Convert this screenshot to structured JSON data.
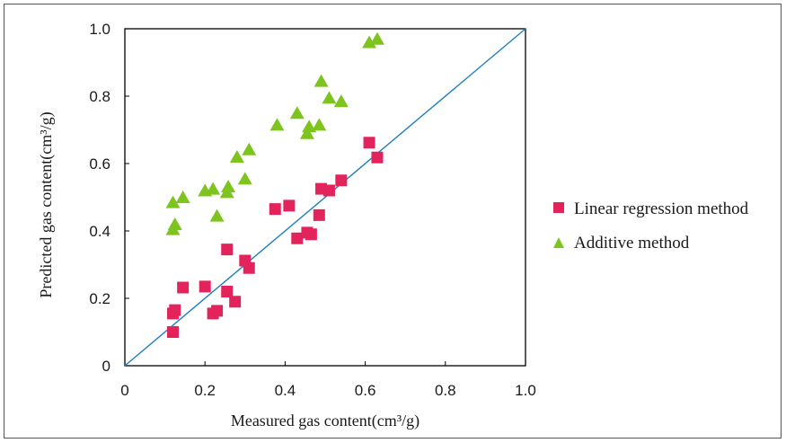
{
  "chart_data": {
    "type": "scatter",
    "xlabel": "Measured gas content(cm³/g)",
    "ylabel": "Predicted gas content(cm³/g)",
    "xlim": [
      0,
      1.0
    ],
    "ylim": [
      0,
      1.0
    ],
    "x_ticks": [
      "0",
      "0.2",
      "0.4",
      "0.6",
      "0.8",
      "1.0"
    ],
    "y_ticks": [
      "0",
      "0.2",
      "0.4",
      "0.6",
      "0.8",
      "1.0"
    ],
    "grid": false,
    "legend_position": "right",
    "reference_line": {
      "type": "y=x",
      "color": "#1f7fc0"
    },
    "series": [
      {
        "name": "Linear regression method",
        "marker": "square",
        "color": "#e3245c",
        "points": [
          [
            0.12,
            0.1
          ],
          [
            0.12,
            0.155
          ],
          [
            0.125,
            0.165
          ],
          [
            0.145,
            0.232
          ],
          [
            0.2,
            0.235
          ],
          [
            0.22,
            0.155
          ],
          [
            0.23,
            0.163
          ],
          [
            0.255,
            0.22
          ],
          [
            0.255,
            0.345
          ],
          [
            0.275,
            0.19
          ],
          [
            0.3,
            0.312
          ],
          [
            0.31,
            0.29
          ],
          [
            0.375,
            0.465
          ],
          [
            0.41,
            0.475
          ],
          [
            0.43,
            0.378
          ],
          [
            0.455,
            0.395
          ],
          [
            0.465,
            0.39
          ],
          [
            0.485,
            0.447
          ],
          [
            0.49,
            0.525
          ],
          [
            0.51,
            0.52
          ],
          [
            0.54,
            0.55
          ],
          [
            0.61,
            0.662
          ],
          [
            0.63,
            0.618
          ]
        ]
      },
      {
        "name": "Additive method",
        "marker": "triangle",
        "color": "#7dc41f",
        "points": [
          [
            0.12,
            0.405
          ],
          [
            0.12,
            0.485
          ],
          [
            0.125,
            0.42
          ],
          [
            0.145,
            0.5
          ],
          [
            0.2,
            0.52
          ],
          [
            0.22,
            0.525
          ],
          [
            0.23,
            0.445
          ],
          [
            0.255,
            0.515
          ],
          [
            0.258,
            0.532
          ],
          [
            0.28,
            0.62
          ],
          [
            0.3,
            0.555
          ],
          [
            0.31,
            0.642
          ],
          [
            0.38,
            0.715
          ],
          [
            0.43,
            0.75
          ],
          [
            0.455,
            0.69
          ],
          [
            0.46,
            0.71
          ],
          [
            0.485,
            0.715
          ],
          [
            0.49,
            0.845
          ],
          [
            0.51,
            0.795
          ],
          [
            0.54,
            0.785
          ],
          [
            0.61,
            0.96
          ],
          [
            0.63,
            0.97
          ]
        ]
      }
    ]
  }
}
